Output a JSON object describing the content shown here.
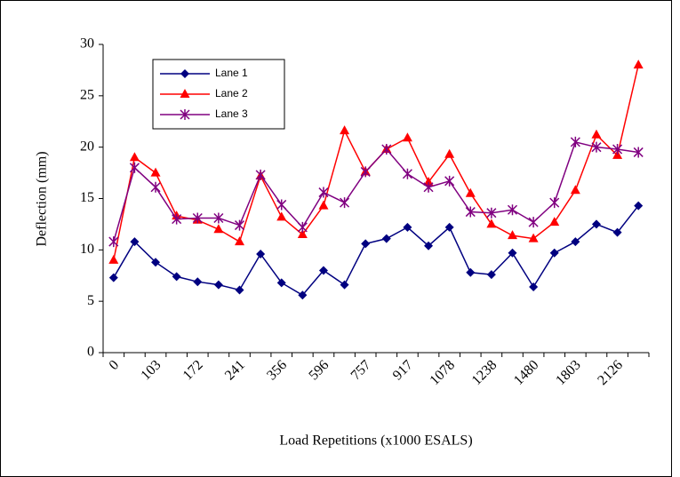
{
  "chart_data": {
    "type": "line",
    "x_label": "Load Repetitions (x1000 ESALS)",
    "y_label": "Deflection (mm)",
    "categories": [
      "0",
      null,
      "103",
      null,
      "172",
      null,
      "241",
      null,
      "356",
      null,
      "596",
      null,
      "757",
      null,
      "917",
      null,
      "1078",
      null,
      "1238",
      null,
      "1480",
      null,
      "1803",
      null,
      "2126",
      null
    ],
    "series": [
      {
        "name": "Lane 1",
        "color": "#000080",
        "marker": "diamond",
        "values": [
          7.3,
          10.8,
          8.8,
          7.4,
          6.9,
          6.6,
          6.1,
          9.6,
          6.8,
          5.6,
          8.0,
          6.6,
          10.6,
          11.1,
          12.2,
          10.4,
          12.2,
          7.8,
          7.6,
          9.7,
          6.4,
          9.7,
          10.8,
          12.5,
          11.7,
          14.3
        ]
      },
      {
        "name": "Lane 2",
        "color": "#ff0000",
        "marker": "triangle",
        "values": [
          9.0,
          19.0,
          17.5,
          13.3,
          12.9,
          12.0,
          10.8,
          17.2,
          13.2,
          11.5,
          14.3,
          21.6,
          17.6,
          19.8,
          20.9,
          16.6,
          19.3,
          15.5,
          12.5,
          11.4,
          11.1,
          12.7,
          15.8,
          21.2,
          19.2,
          28.0
        ]
      },
      {
        "name": "Lane 3",
        "color": "#800080",
        "marker": "asterisk",
        "values": [
          10.8,
          18.0,
          16.1,
          13.0,
          13.1,
          13.1,
          12.4,
          17.3,
          14.4,
          12.2,
          15.6,
          14.6,
          17.6,
          19.8,
          17.4,
          16.1,
          16.7,
          13.7,
          13.6,
          13.9,
          12.7,
          14.6,
          20.5,
          20.0,
          19.8,
          19.5
        ]
      }
    ],
    "ylim": [
      0,
      30
    ],
    "yticks": [
      0,
      5,
      10,
      15,
      20,
      25,
      30
    ],
    "grid": false
  }
}
